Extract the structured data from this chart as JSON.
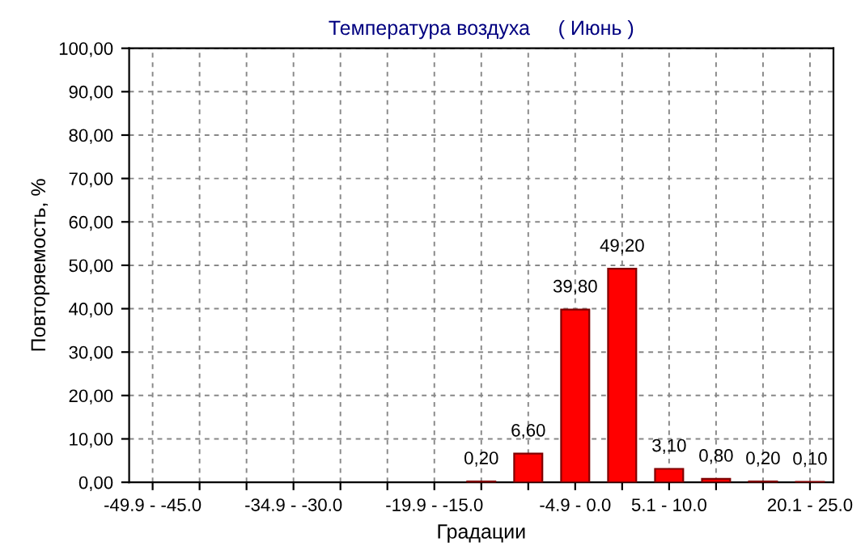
{
  "chart_data": {
    "type": "bar",
    "title": "Температура воздуха     ( Июнь )",
    "xlabel": "Градации",
    "ylabel": "Повторяемость, %",
    "categories": [
      "-49.9 - -45.0",
      null,
      null,
      "-34.9 - -30.0",
      null,
      null,
      "-19.9 - -15.0",
      null,
      null,
      "-4.9 - 0.0",
      null,
      "5.1 - 10.0",
      null,
      null,
      "20.1 - 25.0"
    ],
    "values": [
      null,
      null,
      null,
      null,
      null,
      null,
      null,
      0.2,
      6.6,
      39.8,
      49.2,
      3.1,
      0.8,
      0.2,
      0.1
    ],
    "value_labels": [
      null,
      null,
      null,
      null,
      null,
      null,
      null,
      "0,20",
      "6,60",
      "39,80",
      "49,20",
      "3,10",
      "0,80",
      "0,20",
      "0,10"
    ],
    "color": "#ff0000",
    "ylim": [
      0,
      100
    ],
    "yticks": [
      {
        "value": 0,
        "label": "0,00"
      },
      {
        "value": 10,
        "label": "10,00"
      },
      {
        "value": 20,
        "label": "20,00"
      },
      {
        "value": 30,
        "label": "30,00"
      },
      {
        "value": 40,
        "label": "40,00"
      },
      {
        "value": 50,
        "label": "50,00"
      },
      {
        "value": 60,
        "label": "60,00"
      },
      {
        "value": 70,
        "label": "70,00"
      },
      {
        "value": 80,
        "label": "80,00"
      },
      {
        "value": 90,
        "label": "90,00"
      },
      {
        "value": 100,
        "label": "100,00"
      }
    ],
    "grid": true
  }
}
